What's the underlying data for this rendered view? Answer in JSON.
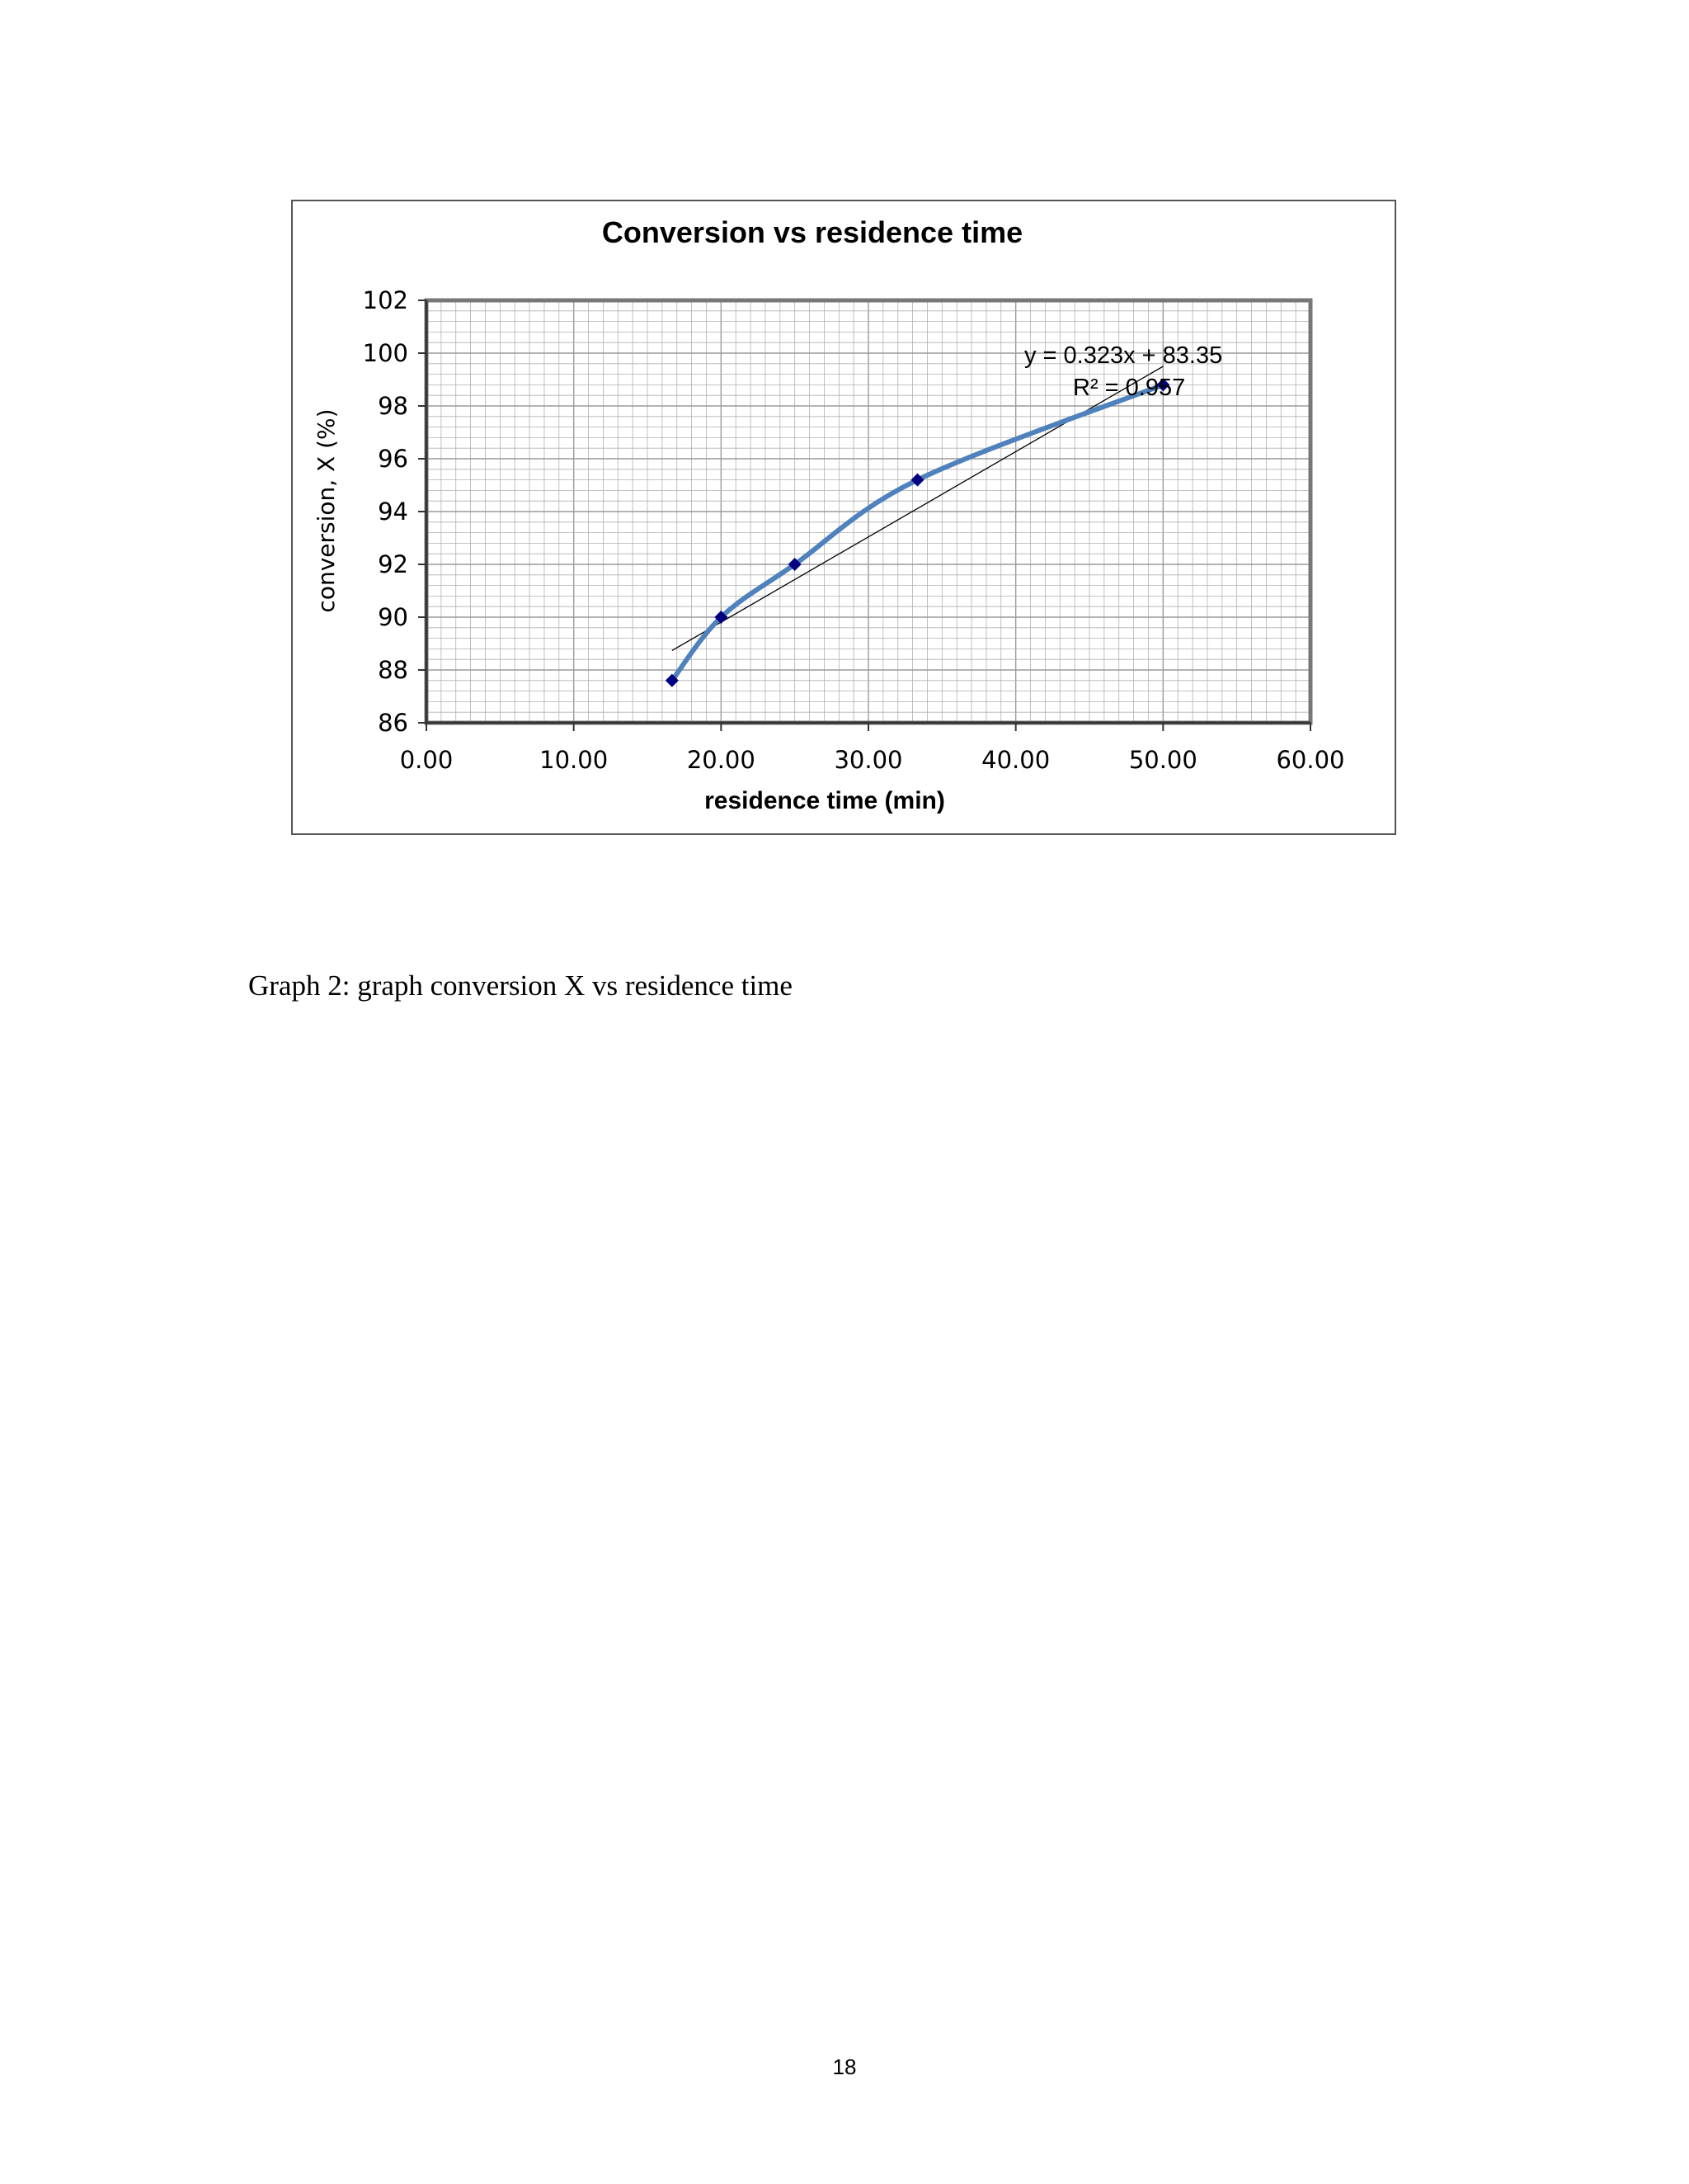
{
  "chart_data": {
    "type": "scatter",
    "title": "Conversion vs residence time",
    "xlabel": "residence time (min)",
    "ylabel": "conversion, X (%)",
    "xlim": [
      0,
      60
    ],
    "ylim": [
      86,
      102
    ],
    "xticks": [
      "0.00",
      "10.00",
      "20.00",
      "30.00",
      "40.00",
      "50.00",
      "60.00"
    ],
    "yticks": [
      "86",
      "88",
      "90",
      "92",
      "94",
      "96",
      "98",
      "100",
      "102"
    ],
    "grid": true,
    "smoothed_line": true,
    "series": [
      {
        "x": [
          16.67,
          20.0,
          25.0,
          33.33,
          50.0
        ],
        "y": [
          87.6,
          90.0,
          92.0,
          95.2,
          98.8
        ]
      }
    ],
    "trendline": {
      "type": "linear",
      "slope": 0.323,
      "intercept": 83.35,
      "equation": "y = 0.323x + 83.35",
      "r_squared": "R² = 0.957"
    },
    "colors": {
      "line": "#4f81bd",
      "marker": "#000080",
      "trendline": "#000000",
      "grid": "#b0b0b0",
      "axis": "#777777"
    }
  },
  "caption": "Graph 2: graph conversion X vs residence time",
  "page_number": "18"
}
